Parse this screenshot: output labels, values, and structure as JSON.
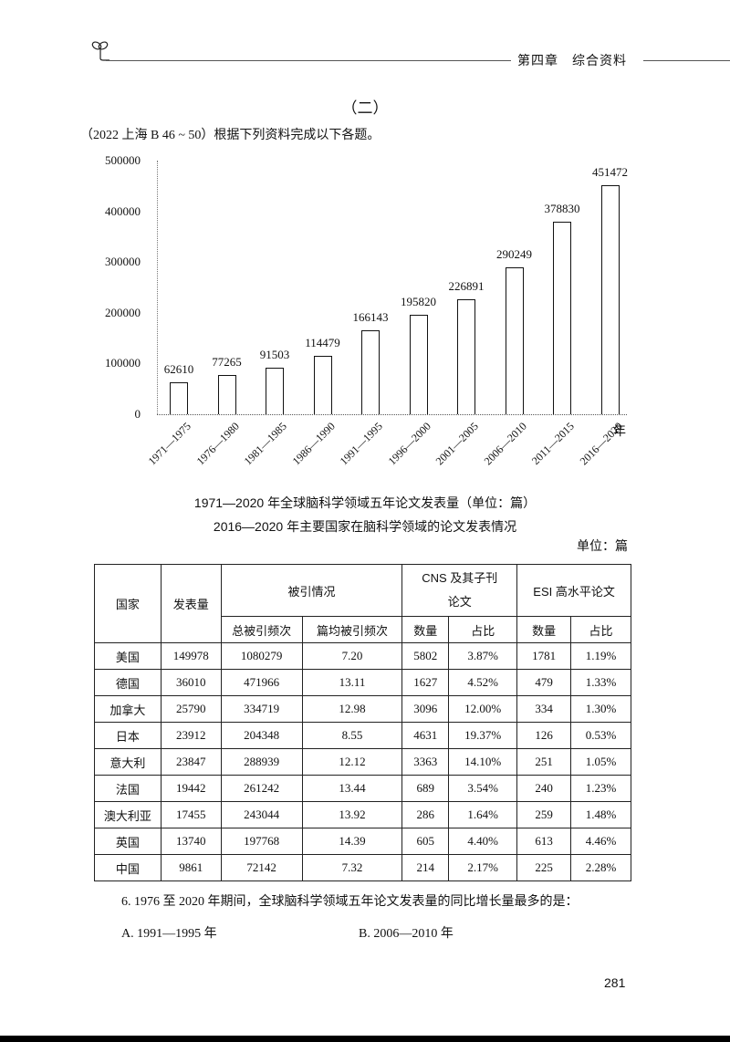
{
  "header": {
    "chapter": "第四章　综合资料",
    "icon": "sprout-icon"
  },
  "section": {
    "title": "（二）",
    "intro": "（2022 上海 B 46 ~ 50）根据下列资料完成以下各题。"
  },
  "chart_data": {
    "type": "bar",
    "title": "1971—2020 年全球脑科学领域五年论文发表量（单位：篇）",
    "xlabel": "年",
    "ylabel": "",
    "ylim": [
      0,
      500000
    ],
    "yticks": [
      "500000",
      "400000",
      "300000",
      "200000",
      "100000",
      "0"
    ],
    "categories": [
      "1971—1975",
      "1976—1980",
      "1981—1985",
      "1986—1990",
      "1991—1995",
      "1996—2000",
      "2001—2005",
      "2006—2010",
      "2011—2015",
      "2016—2020"
    ],
    "values": [
      62610,
      77265,
      91503,
      114479,
      166143,
      195820,
      226891,
      290249,
      378830,
      451472
    ],
    "value_labels": [
      "62610",
      "77265",
      "91503",
      "114479",
      "166143",
      "195820",
      "226891",
      "290249",
      "378830",
      "451472"
    ],
    "grid": false,
    "legend": "none"
  },
  "table": {
    "title": "2016—2020 年主要国家在脑科学领域的论文发表情况",
    "unit": "单位：篇",
    "header_top": [
      "国家",
      "发表量",
      "被引情况",
      "CNS 及其子刊论文",
      "ESI 高水平论文"
    ],
    "header_sub": [
      "总被引频次",
      "篇均被引频次",
      "数量",
      "占比",
      "数量",
      "占比"
    ],
    "rows": [
      [
        "美国",
        "149978",
        "1080279",
        "7.20",
        "5802",
        "3.87%",
        "1781",
        "1.19%"
      ],
      [
        "德国",
        "36010",
        "471966",
        "13.11",
        "1627",
        "4.52%",
        "479",
        "1.33%"
      ],
      [
        "加拿大",
        "25790",
        "334719",
        "12.98",
        "3096",
        "12.00%",
        "334",
        "1.30%"
      ],
      [
        "日本",
        "23912",
        "204348",
        "8.55",
        "4631",
        "19.37%",
        "126",
        "0.53%"
      ],
      [
        "意大利",
        "23847",
        "288939",
        "12.12",
        "3363",
        "14.10%",
        "251",
        "1.05%"
      ],
      [
        "法国",
        "19442",
        "261242",
        "13.44",
        "689",
        "3.54%",
        "240",
        "1.23%"
      ],
      [
        "澳大利亚",
        "17455",
        "243044",
        "13.92",
        "286",
        "1.64%",
        "259",
        "1.48%"
      ],
      [
        "英国",
        "13740",
        "197768",
        "14.39",
        "605",
        "4.40%",
        "613",
        "4.46%"
      ],
      [
        "中国",
        "9861",
        "72142",
        "7.32",
        "214",
        "2.17%",
        "225",
        "2.28%"
      ]
    ]
  },
  "question": {
    "stem": "6. 1976 至 2020 年期间，全球脑科学领域五年论文发表量的同比增长量最多的是：",
    "options": [
      "A. 1991—1995 年",
      "B. 2006—2010 年"
    ]
  },
  "page_number": "281"
}
